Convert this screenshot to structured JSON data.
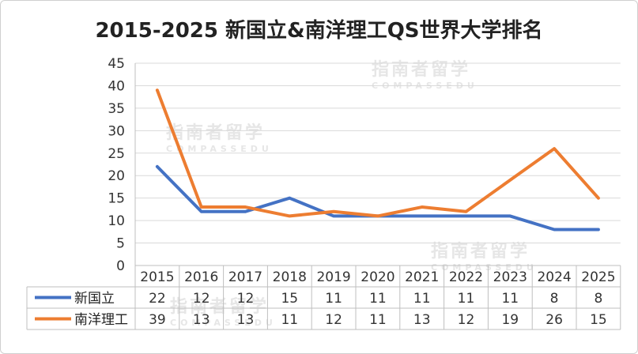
{
  "title": "2015-2025 新国立&南洋理工QS世界大学排名",
  "watermark": {
    "brand": "指南者留学",
    "sub": "COMPASSEDU"
  },
  "chart_data": {
    "type": "line",
    "title": "2015-2025 新国立&南洋理工QS世界大学排名",
    "categories": [
      "2015",
      "2016",
      "2017",
      "2018",
      "2019",
      "2020",
      "2021",
      "2022",
      "2023",
      "2024",
      "2025"
    ],
    "ylim": [
      0,
      45
    ],
    "yticks": [
      0,
      5,
      10,
      15,
      20,
      25,
      30,
      35,
      40,
      45
    ],
    "grid": true,
    "legend": "data-table",
    "series": [
      {
        "name": "新国立",
        "color": "#4472C4",
        "values": [
          22,
          12,
          12,
          15,
          11,
          11,
          11,
          11,
          11,
          8,
          8
        ]
      },
      {
        "name": "南洋理工",
        "color": "#ED7D31",
        "values": [
          39,
          13,
          13,
          11,
          12,
          11,
          13,
          12,
          19,
          26,
          15
        ]
      }
    ]
  }
}
